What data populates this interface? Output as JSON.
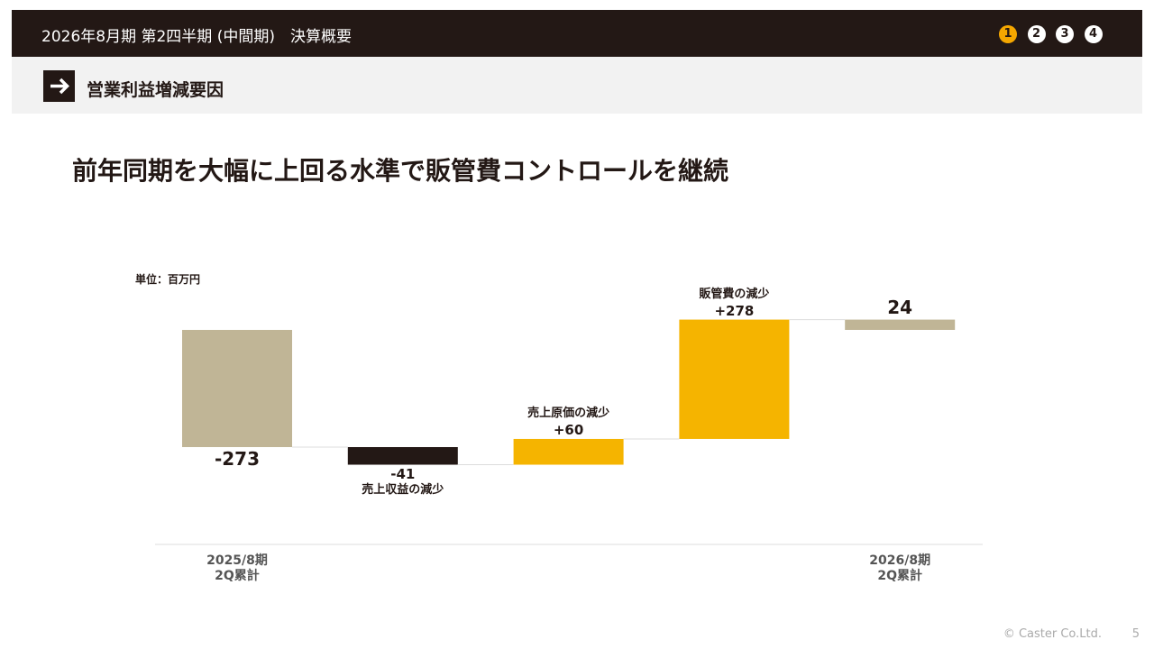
{
  "header": {
    "title": "2026年8月期 第2四半期 (中間期)　決算概要",
    "pages": [
      "1",
      "2",
      "3",
      "4"
    ],
    "current_page": "1"
  },
  "section": {
    "title": "営業利益増減要因"
  },
  "headline": "前年同期を大幅に上回る水準で販管費コントロールを継続",
  "chart_data": {
    "type": "waterfall",
    "unit_label": "単位：百万円",
    "categories": [
      "2025/8期\n2Q累計",
      null,
      null,
      null,
      "2026/8期\n2Q累計"
    ],
    "step_labels": [
      null,
      "売上収益の減少",
      "売上原価の減少",
      "販管費の減少",
      null
    ],
    "values": [
      -273,
      -41,
      60,
      278,
      24
    ],
    "value_labels": [
      "-273",
      "-41",
      "+60",
      "+278",
      "24"
    ],
    "totals": [
      true,
      false,
      false,
      false,
      true
    ],
    "colors": {
      "total": "#c0b596",
      "increase": "#f5b400",
      "decrease": "#231815"
    }
  },
  "footer": {
    "copyright": "© Caster Co.Ltd.",
    "page_number": "5"
  }
}
